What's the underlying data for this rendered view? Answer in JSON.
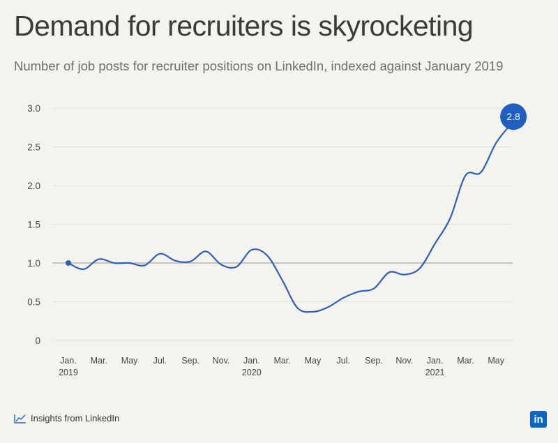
{
  "chart_data": {
    "type": "line",
    "title": "Demand for recruiters is skyrocketing",
    "subtitle": "Number of job posts for recruiter positions on LinkedIn, indexed against January 2019",
    "ylim": [
      0,
      3.0
    ],
    "y_ticks": [
      "3.0",
      "2.5",
      "2.0",
      "1.5",
      "1.0",
      "0.5",
      "0"
    ],
    "y_tick_values": [
      3.0,
      2.5,
      2.0,
      1.5,
      1.0,
      0.5,
      0
    ],
    "reference_line": 1.0,
    "x_ticks": [
      {
        "label": "Jan.",
        "sub": "2019"
      },
      {
        "label": "Mar.",
        "sub": ""
      },
      {
        "label": "May",
        "sub": ""
      },
      {
        "label": "Jul.",
        "sub": ""
      },
      {
        "label": "Sep.",
        "sub": ""
      },
      {
        "label": "Nov.",
        "sub": ""
      },
      {
        "label": "Jan.",
        "sub": "2020"
      },
      {
        "label": "Mar.",
        "sub": ""
      },
      {
        "label": "May",
        "sub": ""
      },
      {
        "label": "Jul.",
        "sub": ""
      },
      {
        "label": "Sep.",
        "sub": ""
      },
      {
        "label": "Nov.",
        "sub": ""
      },
      {
        "label": "Jan.",
        "sub": "2021"
      },
      {
        "label": "Mar.",
        "sub": ""
      },
      {
        "label": "May",
        "sub": ""
      }
    ],
    "series": [
      {
        "x": [
          "2019-01",
          "2019-02",
          "2019-03",
          "2019-04",
          "2019-05",
          "2019-06",
          "2019-07",
          "2019-08",
          "2019-09",
          "2019-10",
          "2019-11",
          "2019-12",
          "2020-01",
          "2020-02",
          "2020-03",
          "2020-04",
          "2020-05",
          "2020-06",
          "2020-07",
          "2020-08",
          "2020-09",
          "2020-10",
          "2020-11",
          "2020-12",
          "2021-01",
          "2021-02",
          "2021-03",
          "2021-04",
          "2021-05",
          "2021-06"
        ],
        "values": [
          1.0,
          0.92,
          1.05,
          1.0,
          1.0,
          0.97,
          1.12,
          1.03,
          1.02,
          1.15,
          0.98,
          0.95,
          1.17,
          1.1,
          0.78,
          0.42,
          0.37,
          0.43,
          0.55,
          0.63,
          0.67,
          0.88,
          0.85,
          0.93,
          1.25,
          1.58,
          2.13,
          2.17,
          2.55,
          2.8
        ]
      }
    ],
    "end_label": "2.8",
    "grid": true,
    "colors": {
      "line": "#2d5fb8",
      "badge": "#1f5fbf",
      "grid": "#e2e0db",
      "reference": "#a9a9a9"
    }
  },
  "footer": {
    "source": "Insights from LinkedIn",
    "logo": "in"
  }
}
